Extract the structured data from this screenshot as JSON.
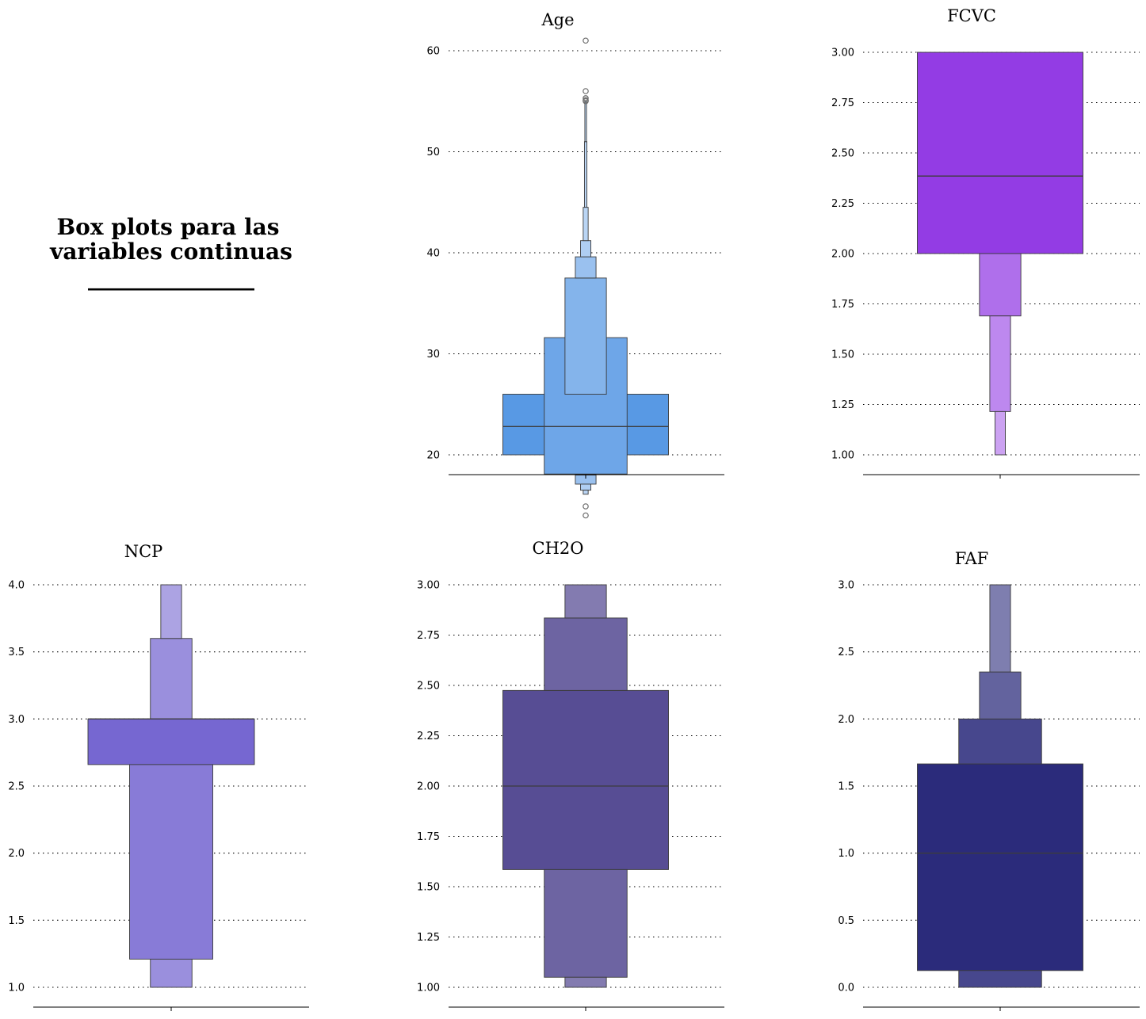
{
  "figure": {
    "title_lines": [
      "Box plots para las",
      "variables continuas"
    ],
    "title_rule": "_______________"
  },
  "chart_data": [
    {
      "type": "boxen",
      "title": "Age",
      "color": "#4a90e2",
      "ylim": [
        12,
        63
      ],
      "yticks": [
        20,
        30,
        40,
        50,
        60
      ],
      "tick_labels": [
        "20",
        "30",
        "40",
        "50",
        "60"
      ],
      "median": 22.8,
      "boxes": [
        {
          "low": 20.0,
          "high": 26.0,
          "width": 1.0
        },
        {
          "low": 18.1,
          "high": 31.6,
          "width": 0.5
        },
        {
          "low": 26.0,
          "high": 37.5,
          "width": 0.25
        },
        {
          "low": 17.1,
          "high": 18.0,
          "width": 0.125
        },
        {
          "low": 37.5,
          "high": 39.6,
          "width": 0.125
        },
        {
          "low": 39.6,
          "high": 41.2,
          "width": 0.0625
        },
        {
          "low": 16.5,
          "high": 17.1,
          "width": 0.0625
        },
        {
          "low": 41.2,
          "high": 44.5,
          "width": 0.03
        },
        {
          "low": 16.1,
          "high": 16.5,
          "width": 0.03
        },
        {
          "low": 44.5,
          "high": 51.0,
          "width": 0.015
        },
        {
          "low": 51.0,
          "high": 55.0,
          "width": 0.01
        }
      ],
      "outliers": [
        61.0,
        56.0,
        55.3,
        55.1,
        55.0,
        14.9,
        14.0
      ]
    },
    {
      "type": "boxen",
      "title": "FCVC",
      "color": "#8a2be2",
      "ylim": [
        0.9,
        3.02
      ],
      "yticks": [
        1.0,
        1.25,
        1.5,
        1.75,
        2.0,
        2.25,
        2.5,
        2.75,
        3.0
      ],
      "tick_labels": [
        "1.00",
        "1.25",
        "1.50",
        "1.75",
        "2.00",
        "2.25",
        "2.50",
        "2.75",
        "3.00"
      ],
      "median": 2.385,
      "boxes": [
        {
          "low": 2.0,
          "high": 3.0,
          "width": 1.0
        },
        {
          "low": 1.69,
          "high": 2.0,
          "width": 0.25
        },
        {
          "low": 1.215,
          "high": 1.69,
          "width": 0.125
        },
        {
          "low": 1.0,
          "high": 1.215,
          "width": 0.0625
        }
      ],
      "outliers": []
    },
    {
      "type": "boxen",
      "title": "NCP",
      "color": "#6a5acd",
      "ylim": [
        0.87,
        4.0
      ],
      "yticks": [
        1.0,
        1.5,
        2.0,
        2.5,
        3.0,
        3.5,
        4.0
      ],
      "tick_labels": [
        "1.0",
        "1.5",
        "2.0",
        "2.5",
        "3.0",
        "3.5",
        "4.0"
      ],
      "median": 3.0,
      "boxes": [
        {
          "low": 2.66,
          "high": 3.0,
          "width": 1.0
        },
        {
          "low": 1.21,
          "high": 2.66,
          "width": 0.5
        },
        {
          "low": 3.0,
          "high": 3.6,
          "width": 0.25
        },
        {
          "low": 1.0,
          "high": 1.21,
          "width": 0.25
        },
        {
          "low": 3.6,
          "high": 4.0,
          "width": 0.125
        }
      ],
      "outliers": []
    },
    {
      "type": "boxen",
      "title": "CH2O",
      "color": "#483d8b",
      "ylim": [
        0.9,
        3.0
      ],
      "yticks": [
        1.0,
        1.25,
        1.5,
        1.75,
        2.0,
        2.25,
        2.5,
        2.75,
        3.0
      ],
      "tick_labels": [
        "1.00",
        "1.25",
        "1.50",
        "1.75",
        "2.00",
        "2.25",
        "2.50",
        "2.75",
        "3.00"
      ],
      "median": 2.0,
      "boxes": [
        {
          "low": 1.585,
          "high": 2.475,
          "width": 1.0
        },
        {
          "low": 1.05,
          "high": 1.585,
          "width": 0.5
        },
        {
          "low": 2.475,
          "high": 2.835,
          "width": 0.5
        },
        {
          "low": 1.0,
          "high": 1.05,
          "width": 0.25
        },
        {
          "low": 2.835,
          "high": 3.0,
          "width": 0.25
        }
      ],
      "outliers": []
    },
    {
      "type": "boxen",
      "title": "FAF",
      "color": "#191970",
      "ylim": [
        -0.15,
        3.0
      ],
      "yticks": [
        0.0,
        0.5,
        1.0,
        1.5,
        2.0,
        2.5,
        3.0
      ],
      "tick_labels": [
        "0.0",
        "0.5",
        "1.0",
        "1.5",
        "2.0",
        "2.5",
        "3.0"
      ],
      "median": 1.0,
      "boxes": [
        {
          "low": 0.125,
          "high": 1.665,
          "width": 1.0
        },
        {
          "low": 0.0,
          "high": 0.125,
          "width": 0.5
        },
        {
          "low": 1.665,
          "high": 2.0,
          "width": 0.5
        },
        {
          "low": 2.0,
          "high": 2.35,
          "width": 0.25
        },
        {
          "low": 2.35,
          "high": 3.0,
          "width": 0.125
        }
      ],
      "outliers": []
    }
  ]
}
